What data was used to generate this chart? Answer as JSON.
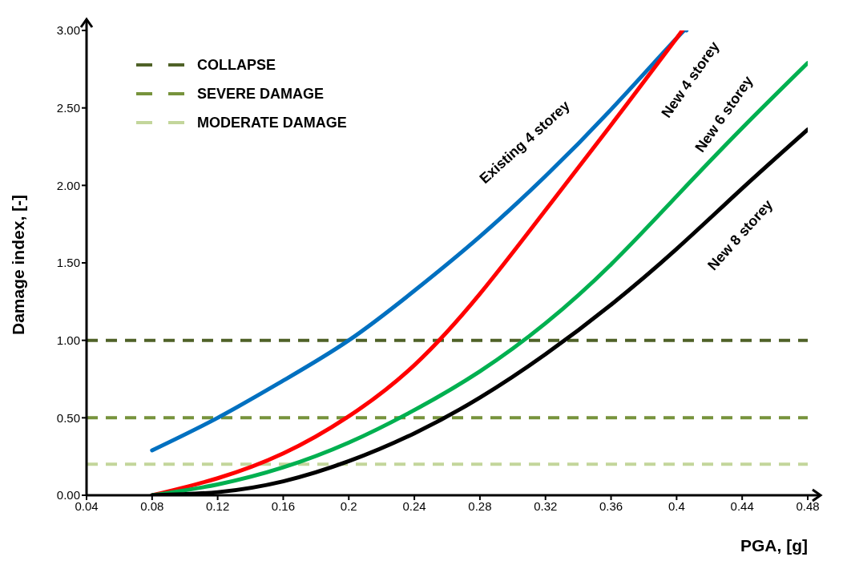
{
  "chart_data": {
    "type": "line",
    "xlabel": "PGA, [g]",
    "ylabel": "Damage index, [-]",
    "xlim": [
      0.04,
      0.48
    ],
    "xticks": [
      0.04,
      0.08,
      0.12,
      0.16,
      0.2,
      0.24,
      0.28,
      0.32,
      0.36,
      0.4,
      0.44,
      0.48
    ],
    "ylim": [
      0,
      3
    ],
    "yticks": [
      {
        "value": 0,
        "label": "0.00"
      },
      {
        "value": 0.5,
        "label": "0.50"
      },
      {
        "value": 1,
        "label": "1.00"
      },
      {
        "value": 1.5,
        "label": "1.50"
      },
      {
        "value": 2,
        "label": "2.00"
      },
      {
        "value": 2.5,
        "label": "2.50"
      },
      {
        "value": 3,
        "label": "3.00"
      }
    ],
    "grid": false,
    "legend": "top left",
    "marker": "none",
    "line_style": "solid",
    "series": [
      {
        "name": "Existing 4 storey",
        "color": "#0070c0",
        "x": [
          0.08,
          0.12,
          0.16,
          0.2,
          0.24,
          0.28,
          0.32,
          0.36,
          0.4,
          0.406
        ],
        "values": [
          0.29,
          0.5,
          0.74,
          1.0,
          1.32,
          1.67,
          2.06,
          2.49,
          2.95,
          3.0
        ]
      },
      {
        "name": "New 4 storey",
        "color": "#ff0000",
        "x": [
          0.08,
          0.12,
          0.16,
          0.2,
          0.24,
          0.28,
          0.32,
          0.36,
          0.4,
          0.403
        ],
        "values": [
          0,
          0.11,
          0.27,
          0.51,
          0.84,
          1.3,
          1.84,
          2.39,
          2.95,
          3.0
        ]
      },
      {
        "name": "New 6 storey",
        "color": "#00b050",
        "x": [
          0.08,
          0.12,
          0.16,
          0.2,
          0.24,
          0.28,
          0.32,
          0.36,
          0.4,
          0.44,
          0.48
        ],
        "values": [
          0,
          0.07,
          0.18,
          0.34,
          0.55,
          0.8,
          1.11,
          1.49,
          1.93,
          2.37,
          2.79
        ]
      },
      {
        "name": "New 8 storey",
        "color": "#000000",
        "x": [
          0.08,
          0.12,
          0.16,
          0.2,
          0.24,
          0.28,
          0.32,
          0.36,
          0.4,
          0.44,
          0.48
        ],
        "values": [
          0,
          0.02,
          0.09,
          0.22,
          0.4,
          0.63,
          0.91,
          1.23,
          1.59,
          1.98,
          2.36
        ]
      }
    ],
    "ref_lines": [
      {
        "axis": "y",
        "value": 1,
        "label": "COLLAPSE",
        "color": "#4f6228",
        "line_style": "dashed"
      },
      {
        "axis": "y",
        "value": 0.5,
        "label": "SEVERE DAMAGE",
        "color": "#77933c",
        "line_style": "dashed"
      },
      {
        "axis": "y",
        "value": 0.2,
        "label": "MODERATE DAMAGE",
        "color": "#c3d69b",
        "line_style": "dashed"
      }
    ]
  }
}
